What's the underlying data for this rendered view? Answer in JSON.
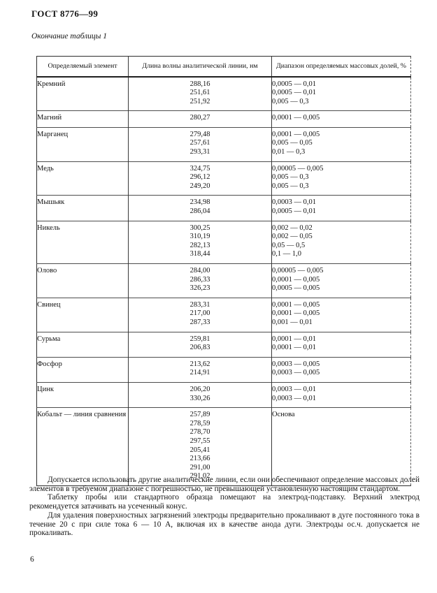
{
  "header": {
    "doc_code": "ГОСТ 8776—99",
    "table_caption": "Окончание таблицы 1"
  },
  "table": {
    "columns": [
      "Определяемый элемент",
      "Длина волны аналитической линии, нм",
      "Диапазон определяемых массовых долей, %"
    ],
    "rows": [
      {
        "element": "Кремний",
        "wavelengths": [
          "288,16",
          "251,61",
          "251,92"
        ],
        "ranges": [
          "0,0005 — 0,01",
          "0,0005 — 0,01",
          "0,005 — 0,3"
        ]
      },
      {
        "element": "Магний",
        "wavelengths": [
          "280,27"
        ],
        "ranges": [
          "0,0001 — 0,005"
        ]
      },
      {
        "element": "Марганец",
        "wavelengths": [
          "279,48",
          "257,61",
          "293,31"
        ],
        "ranges": [
          "0,0001 — 0,005",
          "0,005 — 0,05",
          "0,01 — 0,3"
        ]
      },
      {
        "element": "Медь",
        "wavelengths": [
          "324,75",
          "296,12",
          "249,20"
        ],
        "ranges": [
          "0,00005 — 0,005",
          "0,005 — 0,3",
          "0,005 — 0,3"
        ]
      },
      {
        "element": "Мышьяк",
        "wavelengths": [
          "234,98",
          "286,04"
        ],
        "ranges": [
          "0,0003 — 0,01",
          "0,0005 — 0,01"
        ]
      },
      {
        "element": "Никель",
        "wavelengths": [
          "300,25",
          "310,19",
          "282,13",
          "318,44"
        ],
        "ranges": [
          "0,002 — 0,02",
          "0,002 — 0,05",
          "0,05 — 0,5",
          "0,1 — 1,0"
        ]
      },
      {
        "element": "Олово",
        "wavelengths": [
          "284,00",
          "286,33",
          "326,23"
        ],
        "ranges": [
          "0,00005 — 0,005",
          "0,0001 — 0,005",
          "0,0005 — 0,005"
        ]
      },
      {
        "element": "Свинец",
        "wavelengths": [
          "283,31",
          "217,00",
          "287,33"
        ],
        "ranges": [
          "0,0001 — 0,005",
          "0,0001 — 0,005",
          "0,001 — 0,01"
        ]
      },
      {
        "element": "Сурьма",
        "wavelengths": [
          "259,81",
          "206,83"
        ],
        "ranges": [
          "0,0001 — 0,01",
          "0,0001 — 0,01"
        ]
      },
      {
        "element": "Фосфор",
        "wavelengths": [
          "213,62",
          "214,91"
        ],
        "ranges": [
          "0,0003 — 0,005",
          "0,0003 — 0,005"
        ]
      },
      {
        "element": "Цинк",
        "wavelengths": [
          "206,20",
          "330,26"
        ],
        "ranges": [
          "0,0003 — 0,01",
          "0,0003 — 0,01"
        ]
      },
      {
        "element": "Кобальт — линия сравнения",
        "wavelengths": [
          "257,89",
          "278,59",
          "278,70",
          "297,55",
          "205,41",
          "213,66",
          "291,00",
          "291,02"
        ],
        "ranges": [
          "Основа"
        ]
      }
    ]
  },
  "paragraphs": [
    "Допускается использовать другие аналитические линии, если они обеспечивают определение массовых долей элементов в требуемом диапазоне с погрешностью, не превышающей установленную настоящим стандартом.",
    "Таблетку пробы или стандартного образца помещают на электрод-подставку. Верхний электрод рекомендуется затачивать на усеченный конус.",
    "Для удаления поверхностных загрязнений электроды предварительно прокаливают в дуге постоянного тока в течение 20 с при силе тока 6 — 10 А, включая их в качестве анода дуги. Электроды ос.ч. допускается не прокаливать."
  ],
  "footer": {
    "page_number": "6"
  }
}
